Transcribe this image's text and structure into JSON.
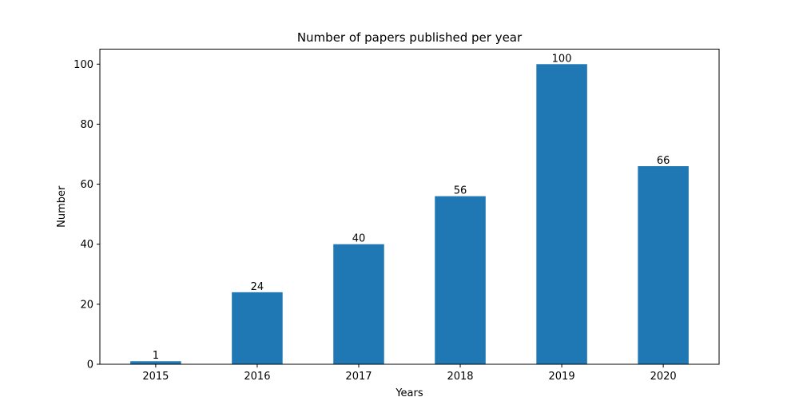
{
  "chart_data": {
    "type": "bar",
    "title": "Number of papers published per year",
    "xlabel": "Years",
    "ylabel": "Number",
    "categories": [
      "2015",
      "2016",
      "2017",
      "2018",
      "2019",
      "2020"
    ],
    "values": [
      1,
      24,
      40,
      56,
      100,
      66
    ],
    "ylim": [
      0,
      105
    ],
    "yticks": [
      0,
      20,
      40,
      60,
      80,
      100
    ],
    "grid": false,
    "bar_color": "#1f77b4"
  }
}
